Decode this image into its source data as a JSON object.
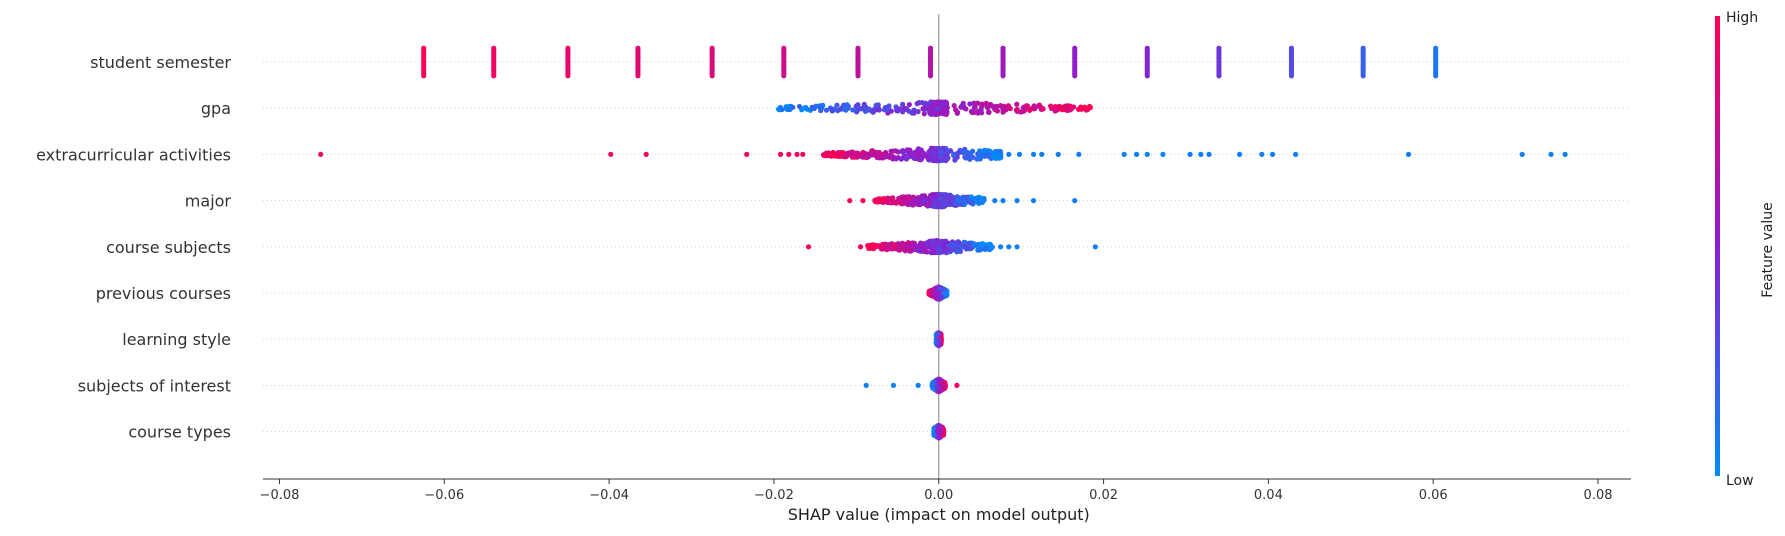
{
  "chart_data": {
    "type": "scatter",
    "subtype": "shap-beeswarm",
    "title": "",
    "xlabel": "SHAP value (impact on model output)",
    "ylabel": "",
    "xlim": [
      -0.082,
      0.084
    ],
    "xticks": [
      -0.08,
      -0.06,
      -0.04,
      -0.02,
      0.0,
      0.02,
      0.04,
      0.06,
      0.08
    ],
    "xtick_labels": [
      "−0.08",
      "−0.06",
      "−0.04",
      "−0.02",
      "0.00",
      "0.02",
      "0.04",
      "0.06",
      "0.08"
    ],
    "zero_line": 0.0,
    "grid": "dotted horizontal per feature",
    "colorbar": {
      "label": "Feature value",
      "high_label": "High",
      "low_label": "Low",
      "high_color": "#ff0052",
      "mid_color": "#8b1fd0",
      "low_color": "#008bfb",
      "placement": "right"
    },
    "features": [
      {
        "name": "student semester",
        "clusters": [
          {
            "x": -0.0625,
            "v": 0.97
          },
          {
            "x": -0.054,
            "v": 0.93
          },
          {
            "x": -0.045,
            "v": 0.9
          },
          {
            "x": -0.0365,
            "v": 0.87
          },
          {
            "x": -0.0275,
            "v": 0.84
          },
          {
            "x": -0.0188,
            "v": 0.78
          },
          {
            "x": -0.0098,
            "v": 0.72
          },
          {
            "x": -0.001,
            "v": 0.66
          },
          {
            "x": 0.0078,
            "v": 0.58
          },
          {
            "x": 0.0165,
            "v": 0.52
          },
          {
            "x": 0.0253,
            "v": 0.47
          },
          {
            "x": 0.034,
            "v": 0.4
          },
          {
            "x": 0.0428,
            "v": 0.3
          },
          {
            "x": 0.0515,
            "v": 0.2
          },
          {
            "x": 0.0603,
            "v": 0.1
          }
        ]
      },
      {
        "name": "gpa",
        "dense_min": -0.0195,
        "dense_max": 0.0185,
        "value_trend": "low-to-high",
        "outliers": []
      },
      {
        "name": "extracurricular activities",
        "dense_min": -0.014,
        "dense_max": 0.008,
        "value_trend": "high-to-low",
        "outliers": [
          {
            "x": -0.075,
            "v": 0.95
          },
          {
            "x": -0.0398,
            "v": 0.95
          },
          {
            "x": -0.0355,
            "v": 0.95
          },
          {
            "x": -0.0233,
            "v": 0.95
          },
          {
            "x": -0.0192,
            "v": 0.95
          },
          {
            "x": -0.0182,
            "v": 0.95
          },
          {
            "x": -0.0172,
            "v": 0.95
          },
          {
            "x": -0.0165,
            "v": 0.95
          },
          {
            "x": 0.0085,
            "v": 0.05
          },
          {
            "x": 0.0098,
            "v": 0.05
          },
          {
            "x": 0.0115,
            "v": 0.05
          },
          {
            "x": 0.0125,
            "v": 0.05
          },
          {
            "x": 0.0145,
            "v": 0.05
          },
          {
            "x": 0.017,
            "v": 0.05
          },
          {
            "x": 0.0225,
            "v": 0.05
          },
          {
            "x": 0.024,
            "v": 0.05
          },
          {
            "x": 0.0253,
            "v": 0.05
          },
          {
            "x": 0.0272,
            "v": 0.05
          },
          {
            "x": 0.0305,
            "v": 0.05
          },
          {
            "x": 0.0318,
            "v": 0.05
          },
          {
            "x": 0.0328,
            "v": 0.05
          },
          {
            "x": 0.0365,
            "v": 0.05
          },
          {
            "x": 0.0392,
            "v": 0.05
          },
          {
            "x": 0.0405,
            "v": 0.05
          },
          {
            "x": 0.0433,
            "v": 0.05
          },
          {
            "x": 0.057,
            "v": 0.05
          },
          {
            "x": 0.0708,
            "v": 0.05
          },
          {
            "x": 0.0743,
            "v": 0.05
          },
          {
            "x": 0.076,
            "v": 0.05
          }
        ]
      },
      {
        "name": "major",
        "dense_min": -0.0078,
        "dense_max": 0.0055,
        "value_trend": "high-to-low",
        "outliers": [
          {
            "x": -0.0108,
            "v": 0.95
          },
          {
            "x": -0.0092,
            "v": 0.95
          },
          {
            "x": 0.0068,
            "v": 0.05
          },
          {
            "x": 0.0078,
            "v": 0.05
          },
          {
            "x": 0.0095,
            "v": 0.05
          },
          {
            "x": 0.0115,
            "v": 0.05
          },
          {
            "x": 0.0165,
            "v": 0.05
          }
        ]
      },
      {
        "name": "course subjects",
        "dense_min": -0.0088,
        "dense_max": 0.0065,
        "value_trend": "high-to-low",
        "outliers": [
          {
            "x": -0.0158,
            "v": 0.95
          },
          {
            "x": -0.0095,
            "v": 0.95
          },
          {
            "x": 0.0075,
            "v": 0.05
          },
          {
            "x": 0.0085,
            "v": 0.05
          },
          {
            "x": 0.0095,
            "v": 0.05
          },
          {
            "x": 0.019,
            "v": 0.05
          }
        ]
      },
      {
        "name": "previous courses",
        "dense_min": -0.0012,
        "dense_max": 0.001,
        "value_trend": "high-to-low",
        "outliers": []
      },
      {
        "name": "learning style",
        "dense_min": -0.0003,
        "dense_max": 0.0003,
        "value_trend": "low-to-high",
        "outliers": []
      },
      {
        "name": "subjects of interest",
        "dense_min": -0.0008,
        "dense_max": 0.0008,
        "value_trend": "low-to-high",
        "outliers": [
          {
            "x": -0.0088,
            "v": 0.05
          },
          {
            "x": -0.0055,
            "v": 0.05
          },
          {
            "x": -0.0025,
            "v": 0.05
          },
          {
            "x": 0.0022,
            "v": 0.95
          }
        ]
      },
      {
        "name": "course types",
        "dense_min": -0.0006,
        "dense_max": 0.0006,
        "value_trend": "low-to-high",
        "outliers": []
      }
    ]
  }
}
